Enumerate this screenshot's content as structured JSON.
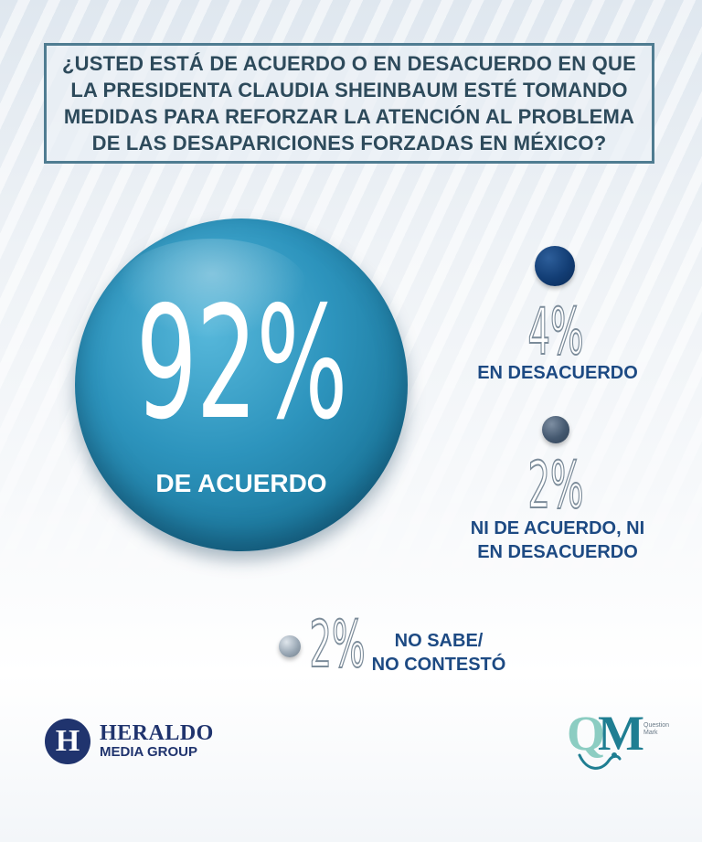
{
  "question": "¿USTED ESTÁ DE ACUERDO O EN DESACUERDO EN QUE LA PRESIDENTA CLAUDIA SHEINBAUM ESTÉ TOMANDO MEDIDAS PARA REFORZAR LA ATENCIÓN AL PROBLEMA DE LAS DESAPARICIONES FORZADAS EN MÉXICO?",
  "chart_data": {
    "type": "bubble",
    "title": "¿USTED ESTÁ DE ACUERDO O EN DESACUERDO EN QUE LA PRESIDENTA CLAUDIA SHEINBAUM ESTÉ TOMANDO MEDIDAS PARA REFORZAR LA ATENCIÓN AL PROBLEMA DE LAS DESAPARICIONES FORZADAS EN MÉXICO?",
    "categories": [
      "DE ACUERDO",
      "EN DESACUERDO",
      "NI DE ACUERDO, NI EN DESACUERDO",
      "NO SABE/ NO CONTESTÓ"
    ],
    "values": [
      92,
      4,
      2,
      2
    ],
    "value_labels": [
      "92%",
      "4%",
      "2%",
      "2%"
    ],
    "colors": [
      "#2d94bd",
      "#123d74",
      "#44586f",
      "#9aa8b5"
    ]
  },
  "results": {
    "main": {
      "value": "92%",
      "label": "DE ACUERDO"
    },
    "desacuerdo": {
      "value": "4%",
      "label": "EN DESACUERDO"
    },
    "neutral": {
      "value": "2%",
      "label_line1": "NI DE ACUERDO, NI",
      "label_line2": "EN DESACUERDO"
    },
    "no_sabe": {
      "value": "2%",
      "label_line1": "NO SABE/",
      "label_line2": "NO CONTESTÓ"
    }
  },
  "branding": {
    "heraldo_mark": "H",
    "heraldo_name": "HERALDO",
    "heraldo_sub": "MEDIA GROUP",
    "qm_letter_q": "Q",
    "qm_letter_m": "M",
    "qm_sub_line1": "Question",
    "qm_sub_line2": "Mark"
  }
}
